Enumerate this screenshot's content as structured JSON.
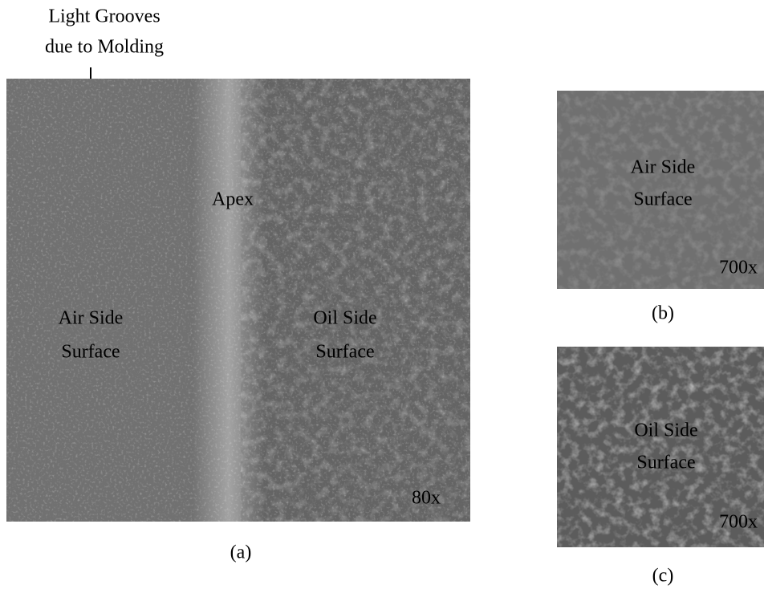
{
  "annotation": {
    "lines": [
      "Light Grooves",
      "due to Molding"
    ]
  },
  "panels": [
    {
      "caption": "(a)",
      "magnification": "80x",
      "apex": "Apex",
      "air_side": [
        "Air Side",
        "Surface"
      ],
      "oil_side": [
        "Oil Side",
        "Surface"
      ]
    },
    {
      "caption": "(b)",
      "magnification": "700x",
      "labels": [
        "Air Side",
        "Surface"
      ]
    },
    {
      "caption": "(c)",
      "magnification": "700x",
      "labels": [
        "Oil Side",
        "Surface"
      ]
    }
  ]
}
